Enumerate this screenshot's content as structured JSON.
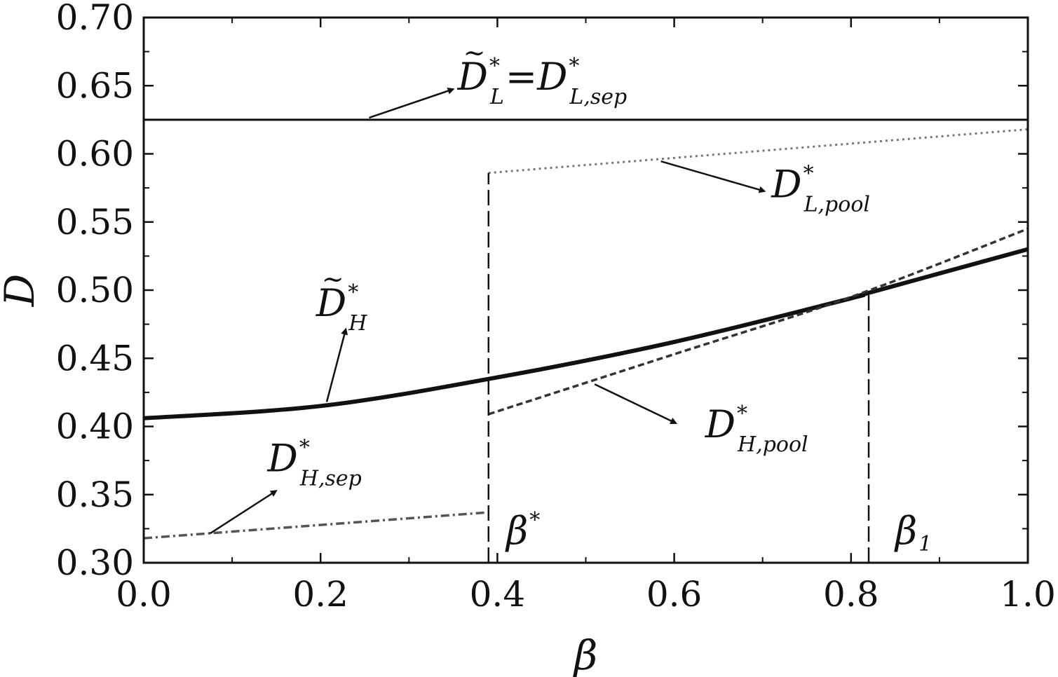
{
  "chart_data": {
    "type": "line",
    "xlabel": "β",
    "ylabel": "D",
    "xlim": [
      0.0,
      1.0
    ],
    "ylim": [
      0.3,
      0.7
    ],
    "x_ticks": [
      "0.0",
      "0.2",
      "0.4",
      "0.6",
      "0.8",
      "1.0"
    ],
    "y_ticks": [
      "0.30",
      "0.35",
      "0.40",
      "0.45",
      "0.50",
      "0.55",
      "0.60",
      "0.65",
      "0.70"
    ],
    "grid": false,
    "series": [
      {
        "key": "dl_tilde",
        "style": "solid-medium",
        "x": [
          0.0,
          1.0
        ],
        "y": [
          0.625,
          0.625
        ]
      },
      {
        "key": "dh_tilde",
        "style": "solid-thick",
        "x": [
          0.0,
          0.2,
          0.4,
          0.6,
          0.8,
          0.82,
          1.0
        ],
        "y": [
          0.406,
          0.415,
          0.436,
          0.462,
          0.494,
          0.498,
          0.53
        ]
      },
      {
        "key": "dh_sep",
        "style": "dashdot",
        "x": [
          0.0,
          0.39
        ],
        "y": [
          0.318,
          0.337
        ]
      },
      {
        "key": "dh_pool",
        "style": "dashed",
        "x": [
          0.39,
          0.6,
          0.8,
          1.0
        ],
        "y": [
          0.409,
          0.453,
          0.495,
          0.545
        ]
      },
      {
        "key": "dl_pool",
        "style": "dotted",
        "x": [
          0.39,
          1.0
        ],
        "y": [
          0.586,
          0.618
        ]
      }
    ],
    "vlines": [
      {
        "key": "beta_star",
        "x": 0.39,
        "y_from": 0.3,
        "y_to": 0.586
      },
      {
        "key": "beta_1",
        "x": 0.82,
        "y_from": 0.3,
        "y_to": 0.498
      }
    ],
    "annotations": [
      {
        "key": "dl",
        "tilde": true,
        "main": "D",
        "sup": "*",
        "sub": "L",
        "rest": "=D",
        "rest_sup": "*",
        "rest_sub": "L,sep",
        "text_at": [
          0.355,
          0.647
        ],
        "arrow_from": [
          0.255,
          0.6265
        ],
        "arrow_to": [
          0.348,
          0.647
        ]
      },
      {
        "key": "dlpool",
        "tilde": false,
        "main": "D",
        "sup": "*",
        "sub": "L,pool",
        "text_at": [
          0.71,
          0.568
        ],
        "arrow_from": [
          0.585,
          0.5945
        ],
        "arrow_to": [
          0.7,
          0.573
        ]
      },
      {
        "key": "dh",
        "tilde": true,
        "main": "D",
        "sup": "*",
        "sub": "H",
        "text_at": [
          0.195,
          0.481
        ],
        "arrow_from": [
          0.207,
          0.418
        ],
        "arrow_to": [
          0.228,
          0.47
        ]
      },
      {
        "key": "dhpool",
        "tilde": false,
        "main": "D",
        "sup": "*",
        "sub": "H,pool",
        "text_at": [
          0.635,
          0.392
        ],
        "arrow_from": [
          0.51,
          0.431
        ],
        "arrow_to": [
          0.6,
          0.403
        ]
      },
      {
        "key": "dhsep",
        "tilde": false,
        "main": "D",
        "sup": "*",
        "sub": "H,sep",
        "text_at": [
          0.14,
          0.367
        ],
        "arrow_from": [
          0.075,
          0.3215
        ],
        "arrow_to": [
          0.148,
          0.352
        ]
      }
    ],
    "vline_labels": [
      {
        "key": "beta_star",
        "main": "β",
        "sup": "*",
        "at": [
          0.41,
          0.314
        ]
      },
      {
        "key": "beta_1",
        "main": "β",
        "sub": "1",
        "at": [
          0.85,
          0.314
        ]
      }
    ]
  }
}
